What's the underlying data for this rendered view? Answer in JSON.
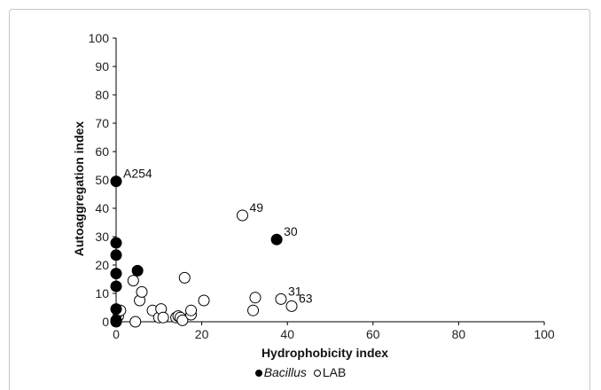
{
  "chart_data": {
    "type": "scatter",
    "xlabel": "Hydrophobicity index",
    "ylabel": "Autoaggregation index",
    "xlim": [
      0,
      100
    ],
    "ylim": [
      0,
      100
    ],
    "xticks": [
      0,
      20,
      40,
      60,
      80,
      100
    ],
    "yticks": [
      0,
      10,
      20,
      30,
      40,
      50,
      60,
      70,
      80,
      90,
      100
    ],
    "grid": false,
    "legend_position": "bottom",
    "series": [
      {
        "name": "Bacillus",
        "marker": "filled-circle",
        "color": "#000000",
        "points": [
          {
            "x": 0,
            "y": 49.5
          },
          {
            "x": 0,
            "y": 27.8
          },
          {
            "x": 0,
            "y": 23.5
          },
          {
            "x": 0,
            "y": 17
          },
          {
            "x": 0,
            "y": 12.5
          },
          {
            "x": 0,
            "y": 4.5
          },
          {
            "x": 0,
            "y": 0.5
          },
          {
            "x": 0,
            "y": 0
          },
          {
            "x": 5,
            "y": 18
          },
          {
            "x": 37.5,
            "y": 29
          }
        ]
      },
      {
        "name": "LAB",
        "marker": "open-circle",
        "color": "#000000",
        "points": [
          {
            "x": 0.5,
            "y": 2
          },
          {
            "x": 0.5,
            "y": 3.5
          },
          {
            "x": 1,
            "y": 4
          },
          {
            "x": 4,
            "y": 14.5
          },
          {
            "x": 4.5,
            "y": 0
          },
          {
            "x": 5.5,
            "y": 7.5
          },
          {
            "x": 6,
            "y": 10.5
          },
          {
            "x": 8.5,
            "y": 4
          },
          {
            "x": 10,
            "y": 1.5
          },
          {
            "x": 10.5,
            "y": 4.5
          },
          {
            "x": 11,
            "y": 1.5
          },
          {
            "x": 14,
            "y": 1.5
          },
          {
            "x": 14.5,
            "y": 2
          },
          {
            "x": 15,
            "y": 1.5
          },
          {
            "x": 15.5,
            "y": 0.5
          },
          {
            "x": 16,
            "y": 15.5
          },
          {
            "x": 17.5,
            "y": 2.5
          },
          {
            "x": 17.5,
            "y": 4
          },
          {
            "x": 20.5,
            "y": 7.5
          },
          {
            "x": 29.5,
            "y": 37.5
          },
          {
            "x": 32,
            "y": 4
          },
          {
            "x": 32.5,
            "y": 8.5
          },
          {
            "x": 38.5,
            "y": 8
          },
          {
            "x": 41,
            "y": 5.5
          }
        ]
      }
    ],
    "annotations": [
      {
        "text": "A254",
        "x": 0,
        "y": 49.5
      },
      {
        "text": "49",
        "x": 29.5,
        "y": 37.5
      },
      {
        "text": "30",
        "x": 37.5,
        "y": 29
      },
      {
        "text": "31",
        "x": 38.5,
        "y": 8
      },
      {
        "text": "63",
        "x": 41,
        "y": 5.5
      }
    ]
  },
  "legend": {
    "bacillus_label": "Bacillus",
    "lab_label": "LAB"
  }
}
